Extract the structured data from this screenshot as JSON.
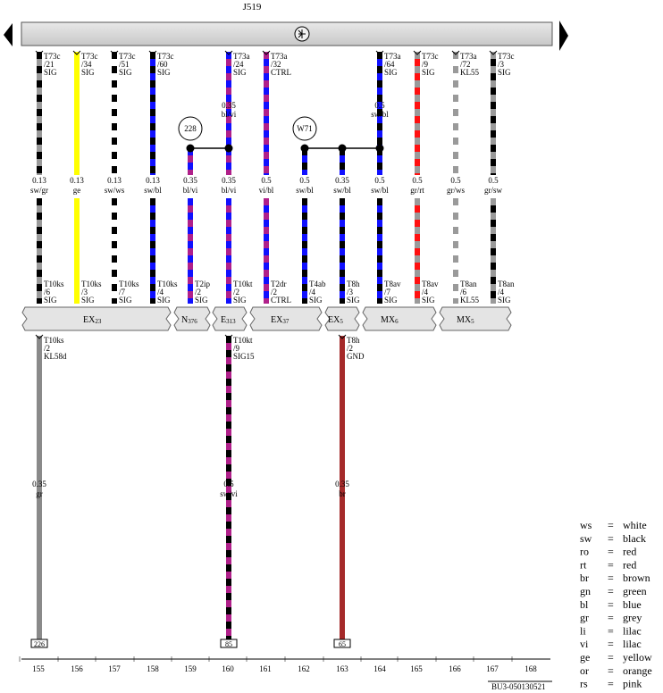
{
  "header": {
    "control_unit": "J519"
  },
  "columns": [
    "155",
    "156",
    "157",
    "158",
    "159",
    "160",
    "161",
    "162",
    "163",
    "164",
    "165",
    "166",
    "167",
    "168"
  ],
  "top_wires": [
    {
      "col": "155",
      "connector": "T73c",
      "pin": "/21",
      "signal": "SIG",
      "section": "0.13",
      "color_code": "sw/gr",
      "colors": [
        "#000000",
        "#9a9a9a"
      ]
    },
    {
      "col": "156",
      "connector": "T73c",
      "pin": "/34",
      "signal": "SIG",
      "section": "0.13",
      "color_code": "ge",
      "colors": [
        "#ffff00"
      ]
    },
    {
      "col": "157",
      "connector": "T73c",
      "pin": "/51",
      "signal": "SIG",
      "section": "0.13",
      "color_code": "sw/ws",
      "colors": [
        "#000000",
        "#ffffff"
      ]
    },
    {
      "col": "158",
      "connector": "T73c",
      "pin": "/60",
      "signal": "SIG",
      "section": "0.13",
      "color_code": "sw/bl",
      "colors": [
        "#000000",
        "#1010ff"
      ]
    },
    {
      "col": "160",
      "connector": "T73a",
      "pin": "/24",
      "signal": "SIG",
      "section": "0.35",
      "color_code": "bl/vi",
      "colors": [
        "#1010ff",
        "#b0208a"
      ]
    },
    {
      "col": "161",
      "connector": "T73a",
      "pin": "/32",
      "signal": "CTRL",
      "section": "0.5",
      "color_code": "vi/bl",
      "colors": [
        "#b0208a",
        "#1010ff"
      ]
    },
    {
      "col": "164",
      "connector": "T73a",
      "pin": "/64",
      "signal": "SIG",
      "section": "0.5",
      "color_code": "sw/bl",
      "colors": [
        "#000000",
        "#1010ff"
      ]
    },
    {
      "col": "165",
      "connector": "T73c",
      "pin": "/9",
      "signal": "SIG",
      "section": "0.5",
      "color_code": "gr/rt",
      "colors": [
        "#9a9a9a",
        "#ff1010"
      ]
    },
    {
      "col": "166",
      "connector": "T73a",
      "pin": "/72",
      "signal": "KL55",
      "section": "0.5",
      "color_code": "gr/ws",
      "colors": [
        "#9a9a9a",
        "#ffffff"
      ]
    },
    {
      "col": "167",
      "connector": "T73c",
      "pin": "/3",
      "signal": "SIG",
      "section": "0.5",
      "color_code": "gr/sw",
      "colors": [
        "#9a9a9a",
        "#000000"
      ]
    }
  ],
  "mid_labels": [
    {
      "col": "155",
      "section": "0.13",
      "color_code": "sw/gr"
    },
    {
      "col": "156",
      "section": "0.13",
      "color_code": "ge"
    },
    {
      "col": "157",
      "section": "0.13",
      "color_code": "sw/ws"
    },
    {
      "col": "158",
      "section": "0.13",
      "color_code": "sw/bl"
    },
    {
      "col": "159",
      "section": "0.35",
      "color_code": "bl/vi"
    },
    {
      "col": "160",
      "section": "0.35",
      "color_code": "bl/vi"
    },
    {
      "col": "161",
      "section": "0.5",
      "color_code": "vi/bl"
    },
    {
      "col": "162",
      "section": "0.5",
      "color_code": "sw/bl"
    },
    {
      "col": "163",
      "section": "0.35",
      "color_code": "sw/bl"
    },
    {
      "col": "164",
      "section": "0.5",
      "color_code": "sw/bl"
    },
    {
      "col": "165",
      "section": "0.5",
      "color_code": "gr/rt"
    },
    {
      "col": "166",
      "section": "0.5",
      "color_code": "gr/ws"
    },
    {
      "col": "167",
      "section": "0.5",
      "color_code": "gr/sw"
    }
  ],
  "lower_wires": [
    {
      "col": "155",
      "connector": "T10ks",
      "pin": "/6",
      "signal": "SIG",
      "colors": [
        "#000000",
        "#9a9a9a"
      ]
    },
    {
      "col": "156",
      "connector": "T10ks",
      "pin": "/3",
      "signal": "SIG",
      "colors": [
        "#ffff00"
      ]
    },
    {
      "col": "157",
      "connector": "T10ks",
      "pin": "/7",
      "signal": "SIG",
      "colors": [
        "#000000",
        "#ffffff"
      ]
    },
    {
      "col": "158",
      "connector": "T10ks",
      "pin": "/4",
      "signal": "SIG",
      "colors": [
        "#000000",
        "#1010ff"
      ]
    },
    {
      "col": "159",
      "connector": "T2ip",
      "pin": "/2",
      "signal": "SIG",
      "colors": [
        "#1010ff",
        "#b0208a"
      ]
    },
    {
      "col": "160",
      "connector": "T10kt",
      "pin": "/2",
      "signal": "SIG",
      "colors": [
        "#1010ff",
        "#b0208a"
      ]
    },
    {
      "col": "161",
      "connector": "T2dr",
      "pin": "/2",
      "signal": "CTRL",
      "colors": [
        "#b0208a",
        "#1010ff"
      ]
    },
    {
      "col": "162",
      "connector": "T4ab",
      "pin": "/4",
      "signal": "SIG",
      "colors": [
        "#000000",
        "#1010ff"
      ]
    },
    {
      "col": "163",
      "connector": "T8h",
      "pin": "/3",
      "signal": "SIG",
      "colors": [
        "#000000",
        "#1010ff"
      ]
    },
    {
      "col": "164",
      "connector": "T8av",
      "pin": "/7",
      "signal": "SIG",
      "colors": [
        "#000000",
        "#1010ff"
      ]
    },
    {
      "col": "165",
      "connector": "T8av",
      "pin": "/4",
      "signal": "SIG",
      "colors": [
        "#9a9a9a",
        "#ff1010"
      ]
    },
    {
      "col": "166",
      "connector": "T8an",
      "pin": "/6",
      "signal": "KL55",
      "colors": [
        "#9a9a9a",
        "#ffffff"
      ]
    },
    {
      "col": "167",
      "connector": "T8an",
      "pin": "/4",
      "signal": "SIG",
      "colors": [
        "#9a9a9a",
        "#000000"
      ]
    }
  ],
  "splices": [
    {
      "label": "228",
      "section": "0.35",
      "color_code": "bl/vi"
    },
    {
      "label": "W71",
      "section": "0.5",
      "color_code": "sw/bl"
    }
  ],
  "modules": [
    {
      "id": "EX23",
      "name": "EX",
      "sub": "23"
    },
    {
      "id": "N376",
      "name": "N",
      "sub": "376"
    },
    {
      "id": "E313",
      "name": "E",
      "sub": "313"
    },
    {
      "id": "EX37",
      "name": "EX",
      "sub": "37"
    },
    {
      "id": "EX5",
      "name": "EX",
      "sub": "5"
    },
    {
      "id": "MX6",
      "name": "MX",
      "sub": "6"
    },
    {
      "id": "MX5",
      "name": "MX",
      "sub": "5"
    }
  ],
  "bottom_wires": [
    {
      "col": "155",
      "connector": "T10ks",
      "pin": "/2",
      "signal": "KL58d",
      "section": "0.35",
      "color_code": "gr",
      "colors": [
        "#8a8a8a"
      ],
      "ref": "226"
    },
    {
      "col": "160",
      "connector": "T10kt",
      "pin": "/9",
      "signal": "SIG15",
      "section": "0.5",
      "color_code": "sw/vi",
      "colors": [
        "#000000",
        "#b0208a"
      ],
      "ref": "85"
    },
    {
      "col": "163",
      "connector": "T8h",
      "pin": "/2",
      "signal": "GND",
      "section": "0.35",
      "color_code": "br",
      "colors": [
        "#a52a2a"
      ],
      "ref": "65"
    }
  ],
  "legend": [
    {
      "code": "ws",
      "eq": "=",
      "name": "white"
    },
    {
      "code": "sw",
      "eq": "=",
      "name": "black"
    },
    {
      "code": "ro",
      "eq": "=",
      "name": "red"
    },
    {
      "code": "rt",
      "eq": "=",
      "name": "red"
    },
    {
      "code": "br",
      "eq": "=",
      "name": "brown"
    },
    {
      "code": "gn",
      "eq": "=",
      "name": "green"
    },
    {
      "code": "bl",
      "eq": "=",
      "name": "blue"
    },
    {
      "code": "gr",
      "eq": "=",
      "name": "grey"
    },
    {
      "code": "li",
      "eq": "=",
      "name": "lilac"
    },
    {
      "code": "vi",
      "eq": "=",
      "name": "lilac"
    },
    {
      "code": "ge",
      "eq": "=",
      "name": "yellow"
    },
    {
      "code": "or",
      "eq": "=",
      "name": "orange"
    },
    {
      "code": "rs",
      "eq": "=",
      "name": "pink"
    }
  ],
  "footer": {
    "diagram_id": "BU3-050130521"
  }
}
